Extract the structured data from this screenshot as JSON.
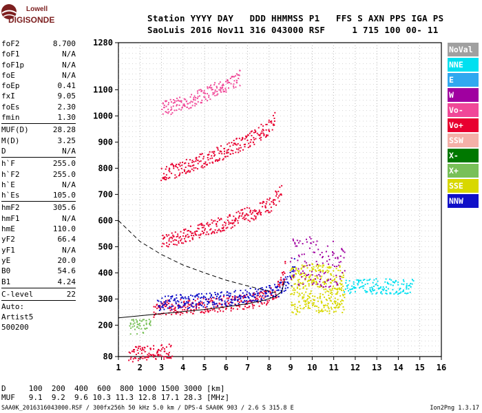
{
  "logo": {
    "line1": "Lowell",
    "line2": "DIGISONDE"
  },
  "header": {
    "line1": "Station YYYY DAY   DDD HHMMSS P1   FFS S AXN PPS IGA PS",
    "line2": "SaoLuis 2016 Nov11 316 043000 RSF     1 715 100 00- 11"
  },
  "params": [
    {
      "name": "foF2",
      "value": "8.700"
    },
    {
      "name": "foF1",
      "value": "N/A"
    },
    {
      "name": "foF1p",
      "value": "N/A"
    },
    {
      "name": "foE",
      "value": "N/A"
    },
    {
      "name": "foEp",
      "value": "0.41"
    },
    {
      "name": "fxI",
      "value": "9.05"
    },
    {
      "name": "foEs",
      "value": "2.30"
    },
    {
      "name": "fmin",
      "value": "1.30"
    },
    {
      "sep": true
    },
    {
      "name": "MUF(D)",
      "value": "28.28"
    },
    {
      "name": "M(D)",
      "value": "3.25"
    },
    {
      "name": "D",
      "value": "N/A"
    },
    {
      "sep": true
    },
    {
      "name": "h`F",
      "value": "255.0"
    },
    {
      "name": "h`F2",
      "value": "255.0"
    },
    {
      "name": "h`E",
      "value": "N/A"
    },
    {
      "name": "h`Es",
      "value": "105.0"
    },
    {
      "sep": true
    },
    {
      "name": "hmF2",
      "value": "305.6"
    },
    {
      "name": "hmF1",
      "value": "N/A"
    },
    {
      "name": "hmE",
      "value": "110.0"
    },
    {
      "name": "yF2",
      "value": "66.4"
    },
    {
      "name": "yF1",
      "value": "N/A"
    },
    {
      "name": "yE",
      "value": "20.0"
    },
    {
      "name": "B0",
      "value": "54.6"
    },
    {
      "name": "B1",
      "value": "4.24"
    },
    {
      "sep": true
    },
    {
      "name": "C-level",
      "value": "22"
    },
    {
      "sep": true
    },
    {
      "text": "Auto:"
    },
    {
      "text": "Artist5"
    },
    {
      "text": "500200"
    }
  ],
  "legend": [
    {
      "label": "NoVal",
      "color": "#a0a0a0"
    },
    {
      "label": "NNE",
      "color": "#00e0f0"
    },
    {
      "label": "E",
      "color": "#30a8f0"
    },
    {
      "label": "W",
      "color": "#a000a0"
    },
    {
      "label": "Vo-",
      "color": "#f04898"
    },
    {
      "label": "Vo+",
      "color": "#e80030"
    },
    {
      "label": "SSW",
      "color": "#f4b0a8"
    },
    {
      "label": "X-",
      "color": "#007800"
    },
    {
      "label": "X+",
      "color": "#78c058"
    },
    {
      "label": "SSE",
      "color": "#d8d800"
    },
    {
      "label": "NNW",
      "color": "#1010c8"
    }
  ],
  "bottom": {
    "d_row": "D     100  200  400  600  800 1000 1500 3000 [km]",
    "muf_row": "MUF   9.1  9.2  9.6 10.3 11.3 12.8 17.1 28.3 [MHz]",
    "footer": "SAA0K_2016316043000.RSF / 300fx256h 50 kHz 5.0 km / DPS-4 SAA0K 903 / 2.6 S 315.8 E",
    "version": "Ion2Png 1.3.17"
  },
  "chart_data": {
    "type": "scatter",
    "xlim": [
      1,
      16
    ],
    "ylim": [
      80,
      1280
    ],
    "xticks": [
      1,
      2,
      3,
      4,
      5,
      6,
      7,
      8,
      9,
      10,
      11,
      12,
      13,
      14,
      15,
      16
    ],
    "yticks": [
      80,
      200,
      300,
      400,
      500,
      600,
      700,
      800,
      900,
      1000,
      1100,
      1280
    ],
    "grid": true,
    "traces": [
      {
        "name": "F2 O-trace",
        "color": "#e80030",
        "points": [
          [
            2.6,
            262
          ],
          [
            3.0,
            268
          ],
          [
            4.0,
            272
          ],
          [
            5.0,
            278
          ],
          [
            6.0,
            284
          ],
          [
            7.0,
            292
          ],
          [
            7.8,
            305
          ],
          [
            8.3,
            330
          ],
          [
            8.6,
            380
          ],
          [
            8.7,
            430
          ]
        ]
      },
      {
        "name": "F2 X-trace",
        "color": "#1010c8",
        "points": [
          [
            2.8,
            285
          ],
          [
            3.5,
            290
          ],
          [
            4.5,
            292
          ],
          [
            5.5,
            300
          ],
          [
            6.5,
            308
          ],
          [
            7.5,
            318
          ],
          [
            8.5,
            340
          ],
          [
            9.0,
            380
          ],
          [
            9.2,
            460
          ]
        ]
      },
      {
        "name": "Spread F",
        "color": "#d8d800",
        "points": [
          [
            9.0,
            330
          ],
          [
            9.5,
            340
          ],
          [
            10.0,
            345
          ],
          [
            10.5,
            340
          ],
          [
            11.0,
            335
          ],
          [
            11.5,
            345
          ]
        ]
      },
      {
        "name": "NNE tail",
        "color": "#00e0f0",
        "points": [
          [
            11.5,
            350
          ],
          [
            12.0,
            352
          ],
          [
            12.5,
            350
          ],
          [
            13.0,
            352
          ],
          [
            13.5,
            350
          ],
          [
            14.0,
            350
          ],
          [
            14.7,
            350
          ]
        ]
      },
      {
        "name": "W band",
        "color": "#a000a0",
        "points": [
          [
            9.0,
            440
          ],
          [
            10.0,
            450
          ],
          [
            11.0,
            430
          ],
          [
            11.5,
            420
          ]
        ]
      },
      {
        "name": "2nd hop",
        "color": "#e80030",
        "points": [
          [
            3.0,
            520
          ],
          [
            4.0,
            545
          ],
          [
            5.0,
            570
          ],
          [
            6.0,
            595
          ],
          [
            7.0,
            625
          ],
          [
            8.0,
            660
          ],
          [
            8.6,
            720
          ]
        ]
      },
      {
        "name": "3rd hop",
        "color": "#e80030",
        "points": [
          [
            3.0,
            780
          ],
          [
            4.0,
            805
          ],
          [
            5.0,
            835
          ],
          [
            6.0,
            870
          ],
          [
            7.0,
            910
          ],
          [
            8.0,
            960
          ],
          [
            8.3,
            1000
          ]
        ]
      },
      {
        "name": "4th hop",
        "color": "#f04898",
        "points": [
          [
            3.0,
            1030
          ],
          [
            4.0,
            1050
          ],
          [
            5.0,
            1085
          ],
          [
            6.0,
            1120
          ],
          [
            6.7,
            1150
          ]
        ]
      },
      {
        "name": "Es lower",
        "color": "#e80030",
        "points": [
          [
            1.5,
            90
          ],
          [
            2.0,
            95
          ],
          [
            2.5,
            98
          ],
          [
            3.0,
            100
          ],
          [
            3.5,
            102
          ]
        ]
      },
      {
        "name": "Es 2nd",
        "color": "#78c058",
        "points": [
          [
            1.5,
            195
          ],
          [
            2.0,
            200
          ],
          [
            2.5,
            205
          ]
        ]
      }
    ],
    "profile_curve": [
      [
        1.0,
        228
      ],
      [
        2.0,
        236
      ],
      [
        3.0,
        244
      ],
      [
        4.0,
        252
      ],
      [
        5.0,
        260
      ],
      [
        6.0,
        270
      ],
      [
        7.0,
        282
      ],
      [
        7.8,
        296
      ],
      [
        8.3,
        310
      ],
      [
        8.6,
        330
      ],
      [
        8.7,
        370
      ]
    ],
    "muf_curve": [
      [
        1.0,
        600
      ],
      [
        2.0,
        520
      ],
      [
        3.0,
        470
      ],
      [
        4.0,
        430
      ],
      [
        5.0,
        400
      ],
      [
        6.0,
        372
      ],
      [
        7.0,
        350
      ],
      [
        8.0,
        330
      ],
      [
        8.5,
        320
      ]
    ]
  }
}
